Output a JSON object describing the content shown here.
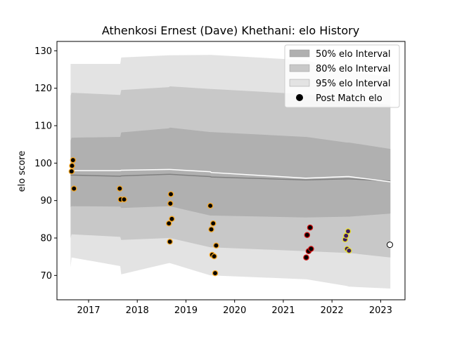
{
  "chart_data": {
    "type": "scatter",
    "title": "Athenkosi Ernest (Dave) Khethani: elo History",
    "xlabel": "",
    "ylabel": "elo score",
    "xlim": [
      2016.35,
      2023.5
    ],
    "ylim": [
      63.5,
      132.5
    ],
    "xticks": [
      2017,
      2018,
      2019,
      2020,
      2021,
      2022,
      2023
    ],
    "yticks": [
      70,
      80,
      90,
      100,
      110,
      120,
      130
    ],
    "legend_position": "top-right",
    "legend": [
      {
        "label": "50% elo Interval",
        "kind": "band",
        "color": "#b0b0b0"
      },
      {
        "label": "80% elo Interval",
        "kind": "band",
        "color": "#c8c8c8"
      },
      {
        "label": "95% elo Interval",
        "kind": "band",
        "color": "#e3e3e3"
      },
      {
        "label": "Post Match elo",
        "kind": "marker",
        "color": "#000000"
      }
    ],
    "bands": {
      "x": [
        2016.63,
        2016.65,
        2017.65,
        2017.67,
        2018.65,
        2018.67,
        2019.5,
        2019.52,
        2021.45,
        2021.47,
        2022.3,
        2022.35,
        2023.2
      ],
      "p95_upper": [
        126.5,
        126.5,
        126.5,
        128.2,
        128.8,
        128.8,
        128.9,
        128.9,
        127.5,
        127.5,
        124.5,
        124.5,
        123.0
      ],
      "p95_lower": [
        72.2,
        74.8,
        72.5,
        70.3,
        73.3,
        73.3,
        70.0,
        70.0,
        69.0,
        69.0,
        67.2,
        67.0,
        66.5
      ],
      "p80_upper": [
        118.0,
        118.8,
        118.2,
        119.5,
        120.3,
        120.5,
        119.8,
        119.8,
        118.4,
        118.4,
        116.8,
        116.8,
        115.5
      ],
      "p80_lower": [
        80.0,
        81.0,
        80.3,
        79.5,
        80.0,
        80.0,
        77.5,
        77.5,
        76.5,
        76.5,
        76.0,
        76.0,
        74.8
      ],
      "p50_upper": [
        106.0,
        106.8,
        107.0,
        108.2,
        109.3,
        109.5,
        108.3,
        108.3,
        107.0,
        107.0,
        105.5,
        105.5,
        103.8
      ],
      "p50_lower": [
        88.3,
        88.5,
        88.4,
        88.0,
        88.5,
        88.5,
        86.0,
        86.0,
        85.5,
        85.5,
        85.7,
        85.7,
        86.5
      ],
      "mean": [
        96.8,
        96.8,
        96.5,
        96.6,
        97.0,
        97.0,
        96.4,
        96.3,
        95.5,
        95.5,
        95.8,
        95.8,
        95.2
      ],
      "median": [
        98.0,
        98.0,
        98.0,
        98.1,
        98.3,
        98.3,
        97.7,
        97.5,
        96.0,
        96.0,
        96.4,
        96.4,
        95.0
      ]
    },
    "series": [
      {
        "name": "",
        "color": "#f5a623",
        "points": [
          [
            2016.65,
            97.8
          ],
          [
            2016.66,
            99.3
          ],
          [
            2016.68,
            100.8
          ],
          [
            2016.7,
            93.2
          ]
        ]
      },
      {
        "name": "",
        "color": "#f5a623",
        "points": [
          [
            2017.64,
            93.2
          ],
          [
            2017.66,
            90.3
          ],
          [
            2017.73,
            90.3
          ]
        ]
      },
      {
        "name": "",
        "color": "#f5a623",
        "points": [
          [
            2018.65,
            83.9
          ],
          [
            2018.67,
            79.0
          ],
          [
            2018.68,
            89.2
          ],
          [
            2018.69,
            91.7
          ],
          [
            2018.71,
            85.1
          ]
        ]
      },
      {
        "name": "",
        "color": "#f5a623",
        "points": [
          [
            2019.5,
            88.6
          ],
          [
            2019.52,
            82.3
          ],
          [
            2019.54,
            75.5
          ],
          [
            2019.56,
            83.9
          ],
          [
            2019.58,
            75.1
          ],
          [
            2019.6,
            70.6
          ],
          [
            2019.62,
            78.0
          ]
        ]
      },
      {
        "name": "",
        "color": "#d01010",
        "points": [
          [
            2021.47,
            74.8
          ],
          [
            2021.49,
            80.8
          ],
          [
            2021.52,
            76.5
          ],
          [
            2021.55,
            82.8
          ],
          [
            2021.57,
            77.1
          ]
        ]
      },
      {
        "name": "",
        "color": "#3b1a60",
        "edge": "#e8e030",
        "points": [
          [
            2022.27,
            79.6
          ],
          [
            2022.29,
            80.6
          ],
          [
            2022.31,
            77.1
          ],
          [
            2022.33,
            81.8
          ],
          [
            2022.35,
            76.6
          ]
        ]
      }
    ],
    "current_point": {
      "x": 2023.19,
      "y": 78.2,
      "color": "#ffffff"
    }
  }
}
